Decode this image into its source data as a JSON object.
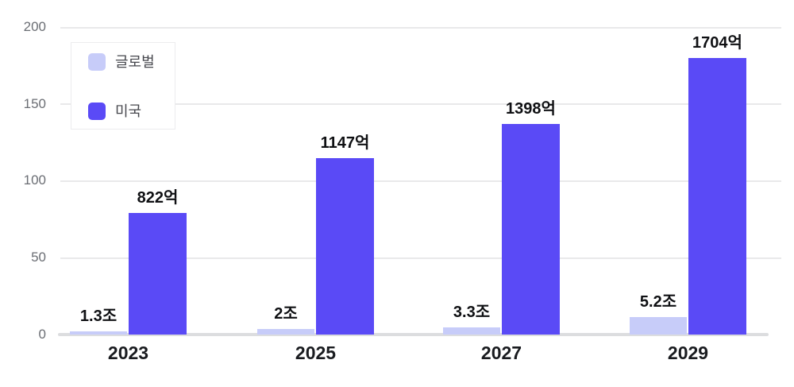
{
  "chart_data": {
    "type": "bar",
    "categories": [
      "2023",
      "2025",
      "2027",
      "2029"
    ],
    "series": [
      {
        "key": "global",
        "name": "글로벌",
        "color": "#c7ccf9",
        "data_labels": [
          "1.3조",
          "2조",
          "3.3조",
          "5.2조"
        ],
        "values": [
          1.3,
          2,
          3.3,
          5.2
        ],
        "unit": "조",
        "axis_heights": [
          2,
          3.6,
          4.9,
          11.4
        ]
      },
      {
        "key": "usa",
        "name": "미국",
        "color": "#5a4af6",
        "data_labels": [
          "822억",
          "1147억",
          "1398억",
          "1704억"
        ],
        "values": [
          822,
          1147,
          1398,
          1704
        ],
        "unit": "억",
        "axis_heights": [
          79,
          114.5,
          137,
          180
        ]
      }
    ],
    "yticks": [
      "200",
      "150",
      "100",
      "50",
      "0"
    ],
    "ylim": [
      0,
      200
    ],
    "grid": true,
    "legend_position": "top-left",
    "colors": {
      "background": "#ffffff",
      "gridline": "#e9e9ea",
      "axis_line": "#dcdddf",
      "ytick_text": "#6b6e74",
      "xtick_text": "#191b1f",
      "datalabel_text": "#0f1013",
      "legend_text": "#46474d",
      "legend_border": "#ececee"
    }
  }
}
